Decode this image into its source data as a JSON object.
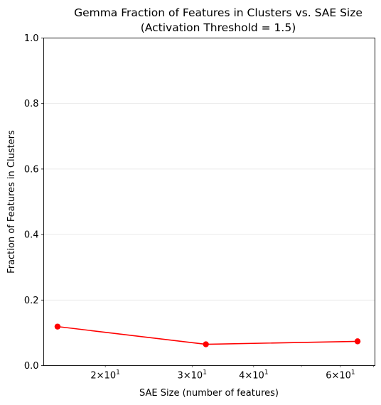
{
  "chart_data": {
    "type": "line",
    "title": "Gemma Fraction of Features in Clusters vs. SAE Size",
    "subtitle": "(Activation Threshold = 1.5)",
    "xlabel": "SAE Size (number of features)",
    "ylabel": "Fraction of Features in Clusters",
    "x_scale": "log",
    "xlim": [
      15.0,
      70.5
    ],
    "ylim": [
      0,
      1.0
    ],
    "x_ticks": [
      {
        "value": 20,
        "base": "2×10",
        "exp": "1"
      },
      {
        "value": 30,
        "base": "3×10",
        "exp": "1"
      },
      {
        "value": 40,
        "base": "4×10",
        "exp": "1"
      },
      {
        "value": 60,
        "base": "6×10",
        "exp": "1"
      }
    ],
    "y_ticks": [
      {
        "value": 0.0,
        "label": "0.0"
      },
      {
        "value": 0.2,
        "label": "0.2"
      },
      {
        "value": 0.4,
        "label": "0.4"
      },
      {
        "value": 0.6,
        "label": "0.6"
      },
      {
        "value": 0.8,
        "label": "0.8"
      },
      {
        "value": 1.0,
        "label": "1.0"
      }
    ],
    "grid": "horizontal",
    "series": [
      {
        "color": "#ff0000",
        "x": [
          16,
          32,
          65
        ],
        "y": [
          0.119,
          0.065,
          0.074
        ]
      }
    ]
  }
}
